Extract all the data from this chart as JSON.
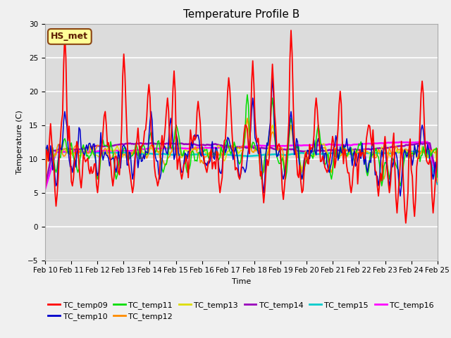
{
  "title": "Temperature Profile B",
  "xlabel": "Time",
  "ylabel": "Temperature (C)",
  "ylim": [
    -5,
    30
  ],
  "x_tick_labels": [
    "Feb 10",
    "Feb 11",
    "Feb 12",
    "Feb 13",
    "Feb 14",
    "Feb 15",
    "Feb 16",
    "Feb 17",
    "Feb 18",
    "Feb 19",
    "Feb 20",
    "Feb 21",
    "Feb 22",
    "Feb 23",
    "Feb 24",
    "Feb 25"
  ],
  "series_colors": {
    "TC_temp09": "#FF0000",
    "TC_temp10": "#0000CC",
    "TC_temp11": "#00DD00",
    "TC_temp12": "#FF8C00",
    "TC_temp13": "#DDDD00",
    "TC_temp14": "#9900BB",
    "TC_temp15": "#00CCCC",
    "TC_temp16": "#FF00FF"
  },
  "annotation_text": "HS_met",
  "plot_bg_color": "#DCDCDC",
  "fig_bg_color": "#F0F0F0",
  "grid_color": "#FFFFFF",
  "title_fontsize": 11,
  "label_fontsize": 8,
  "tick_fontsize": 7.5
}
